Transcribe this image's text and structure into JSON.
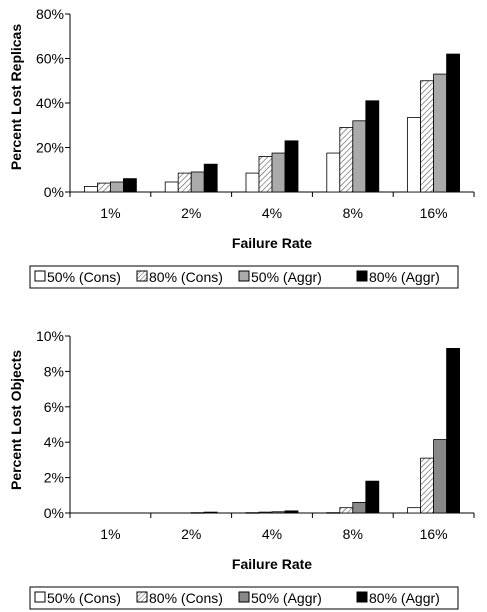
{
  "chart_data": [
    {
      "type": "bar",
      "xlabel": "Failure Rate",
      "ylabel": "Percent Lost Replicas",
      "ylim": [
        0,
        80
      ],
      "yticks": [
        "0%",
        "20%",
        "40%",
        "60%",
        "80%"
      ],
      "categories": [
        "1%",
        "2%",
        "4%",
        "8%",
        "16%"
      ],
      "series": [
        {
          "name": "50% (Cons)",
          "values": [
            2.5,
            4.5,
            8.5,
            17.5,
            33.5
          ]
        },
        {
          "name": "80% (Cons)",
          "values": [
            4.0,
            8.5,
            16.0,
            29.0,
            50.0
          ]
        },
        {
          "name": "50% (Aggr)",
          "values": [
            4.5,
            9.0,
            17.5,
            32.0,
            53.0
          ]
        },
        {
          "name": "80% (Aggr)",
          "values": [
            6.0,
            12.5,
            23.0,
            41.0,
            62.0
          ]
        }
      ],
      "legend_position": "bottom",
      "grid": false
    },
    {
      "type": "bar",
      "xlabel": "Failure Rate",
      "ylabel": "Percent Lost Objects",
      "ylim": [
        0,
        10
      ],
      "yticks": [
        "0%",
        "2%",
        "4%",
        "6%",
        "8%",
        "10%"
      ],
      "categories": [
        "1%",
        "2%",
        "4%",
        "8%",
        "16%"
      ],
      "series": [
        {
          "name": "50% (Cons)",
          "values": [
            0,
            0,
            0.02,
            0.02,
            0.3
          ]
        },
        {
          "name": "80% (Cons)",
          "values": [
            0,
            0,
            0.05,
            0.3,
            3.1
          ]
        },
        {
          "name": "50% (Aggr)",
          "values": [
            0,
            0.02,
            0.07,
            0.6,
            4.15
          ]
        },
        {
          "name": "80% (Aggr)",
          "values": [
            0,
            0.05,
            0.12,
            1.8,
            9.3
          ]
        }
      ],
      "legend_position": "bottom",
      "grid": false
    }
  ],
  "series_styles": [
    {
      "fill": "#ffffff",
      "pattern": "none"
    },
    {
      "fill": "#ffffff",
      "pattern": "diagonal-hatch"
    },
    {
      "fill": "#aaaaaa",
      "pattern": "none"
    },
    {
      "fill": "#000000",
      "pattern": "none"
    }
  ],
  "second_chart_third_series_fill": "#888888"
}
